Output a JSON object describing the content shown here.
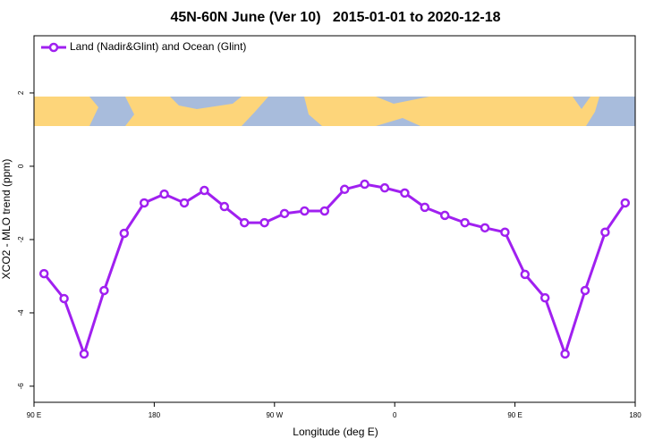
{
  "chart_data": {
    "type": "line",
    "title": "45N-60N June (Ver 10)   2015-01-01 to 2020-12-18",
    "x_label": "Longitude (deg E)",
    "y_label": "XCO2 - MLO trend (ppm)",
    "x": [
      97.5,
      112.5,
      127.5,
      142.5,
      157.5,
      172.5,
      187.5,
      202.5,
      217.5,
      232.5,
      247.5,
      262.5,
      277.5,
      292.5,
      307.5,
      322.5,
      337.5,
      352.5,
      367.5,
      382.5,
      397.5,
      412.5,
      427.5,
      442.5,
      457.5,
      472.5,
      487.5,
      502.5,
      517.5,
      532.5
    ],
    "series": [
      {
        "name": "Land (Nadir&Glint) and Ocean (Glint)",
        "color": "#a020f0",
        "values": [
          -2.93,
          -3.61,
          -5.12,
          -3.39,
          -1.83,
          -1.0,
          -0.76,
          -1.0,
          -0.66,
          -1.1,
          -1.54,
          -1.54,
          -1.29,
          -1.22,
          -1.22,
          -0.63,
          -0.49,
          -0.59,
          -0.73,
          -1.12,
          -1.34,
          -1.54,
          -1.68,
          -1.8,
          -2.95,
          -3.59,
          -5.12,
          -3.39,
          -1.8,
          -1.0
        ]
      }
    ],
    "xlim": [
      90,
      540
    ],
    "xticks": [
      {
        "value": 90,
        "label": "90 E"
      },
      {
        "value": 180,
        "label": "180"
      },
      {
        "value": 270,
        "label": "90 W"
      },
      {
        "value": 360,
        "label": "0"
      },
      {
        "value": 450,
        "label": "90 E"
      },
      {
        "value": 540,
        "label": "180"
      }
    ],
    "ylim": [
      -6.44,
      3.56
    ],
    "yticks": [
      -6,
      -4,
      -2,
      0,
      2
    ],
    "legend": "top-left"
  }
}
